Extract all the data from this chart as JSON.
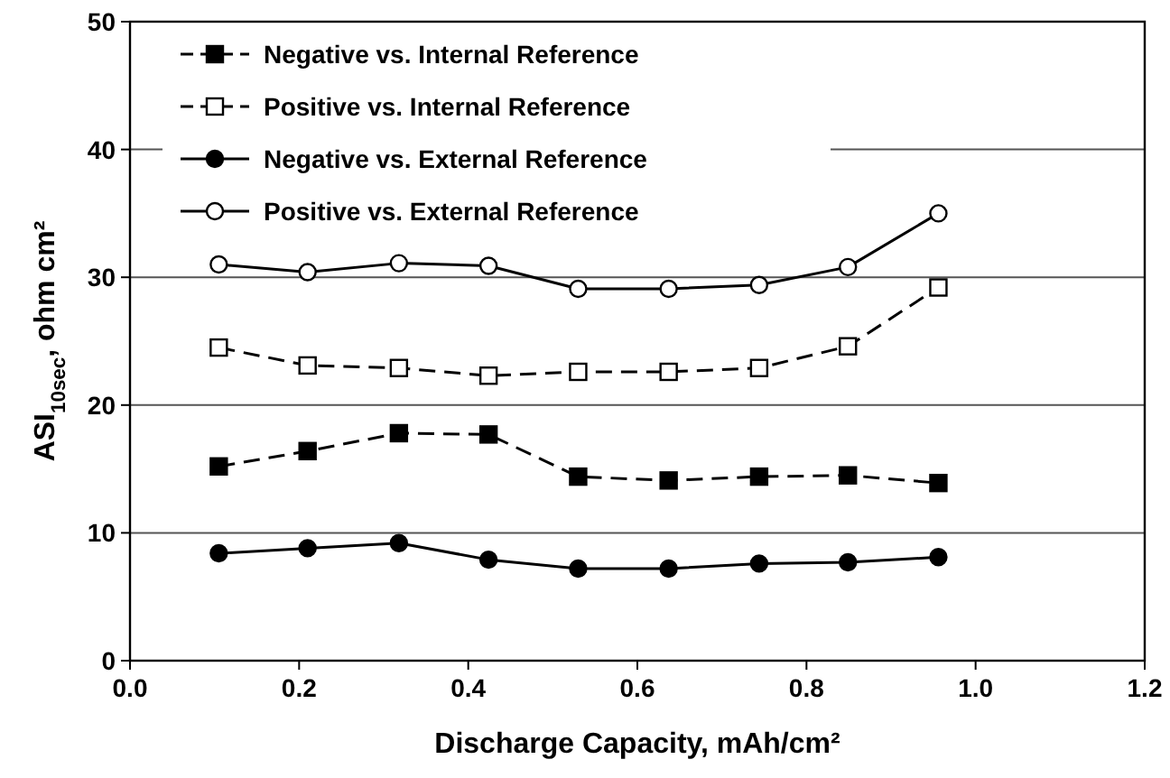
{
  "chart_data": {
    "type": "line",
    "xlabel": "Discharge Capacity, mAh/cm²",
    "ylabel": "ASI$_{10sec}$, ohm cm²",
    "x": [
      0.105,
      0.21,
      0.318,
      0.424,
      0.53,
      0.637,
      0.744,
      0.849,
      0.956
    ],
    "series": [
      {
        "name": "Negative vs. Internal Reference",
        "color": "#000000",
        "marker": "square",
        "line_style": "dashed",
        "values": [
          15.2,
          16.4,
          17.8,
          17.7,
          14.4,
          14.1,
          14.4,
          14.5,
          13.9
        ]
      },
      {
        "name": "Positive vs. Internal Reference",
        "color": "#000000",
        "marker": "square",
        "line_style": "dashed",
        "values": [
          24.5,
          23.1,
          22.9,
          22.3,
          22.6,
          22.6,
          22.9,
          24.6,
          29.2
        ]
      },
      {
        "name": "Negative vs. External Reference",
        "color": "#000000",
        "marker": "circle",
        "line_style": "solid",
        "values": [
          8.4,
          8.8,
          9.2,
          7.9,
          7.2,
          7.2,
          7.6,
          7.7,
          8.1
        ]
      },
      {
        "name": "Positive vs. External Reference",
        "color": "#000000",
        "marker": "circle",
        "line_style": "solid",
        "values": [
          31.0,
          30.4,
          31.1,
          30.9,
          29.1,
          29.1,
          29.4,
          30.8,
          35.0
        ]
      }
    ],
    "xlim": [
      0,
      1.2
    ],
    "xticks": [
      {
        "value": 0,
        "label": "0.0"
      },
      {
        "value": 0.2,
        "label": "0.2"
      },
      {
        "value": 0.4,
        "label": "0.4"
      },
      {
        "value": 0.6,
        "label": "0.6"
      },
      {
        "value": 0.8,
        "label": "0.8"
      },
      {
        "value": 1,
        "label": "1.0"
      },
      {
        "value": 1.2,
        "label": "1.2"
      }
    ],
    "ylim": [
      0,
      50
    ],
    "yticks": [
      0,
      10,
      20,
      30,
      40,
      50
    ],
    "grid": "y",
    "legend": "top left"
  }
}
